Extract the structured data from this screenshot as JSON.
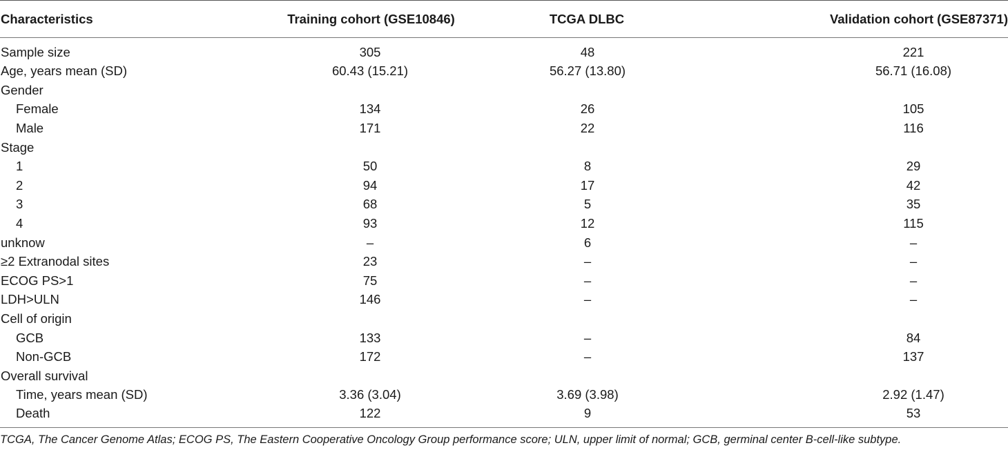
{
  "table": {
    "headers": [
      "Characteristics",
      "Training cohort (GSE10846)",
      "TCGA DLBC",
      "Validation cohort (GSE87371)"
    ],
    "rows": [
      {
        "label": "Sample size",
        "indent": false,
        "values": [
          "305",
          "48",
          "221"
        ]
      },
      {
        "label": "Age, years mean (SD)",
        "indent": false,
        "values": [
          "60.43 (15.21)",
          "56.27 (13.80)",
          "56.71 (16.08)"
        ]
      },
      {
        "label": "Gender",
        "indent": false,
        "values": [
          "",
          "",
          ""
        ]
      },
      {
        "label": "Female",
        "indent": true,
        "values": [
          "134",
          "26",
          "105"
        ]
      },
      {
        "label": "Male",
        "indent": true,
        "values": [
          "171",
          "22",
          "116"
        ]
      },
      {
        "label": "Stage",
        "indent": false,
        "values": [
          "",
          "",
          ""
        ]
      },
      {
        "label": "1",
        "indent": true,
        "values": [
          "50",
          "8",
          "29"
        ]
      },
      {
        "label": "2",
        "indent": true,
        "values": [
          "94",
          "17",
          "42"
        ]
      },
      {
        "label": "3",
        "indent": true,
        "values": [
          "68",
          "5",
          "35"
        ]
      },
      {
        "label": "4",
        "indent": true,
        "values": [
          "93",
          "12",
          "115"
        ]
      },
      {
        "label": "unknow",
        "indent": false,
        "values": [
          "–",
          "6",
          "–"
        ]
      },
      {
        "label": "≥2 Extranodal sites",
        "indent": false,
        "values": [
          "23",
          "–",
          "–"
        ]
      },
      {
        "label": "ECOG PS>1",
        "indent": false,
        "values": [
          "75",
          "–",
          "–"
        ]
      },
      {
        "label": "LDH>ULN",
        "indent": false,
        "values": [
          "146",
          "–",
          "–"
        ]
      },
      {
        "label": "Cell of origin",
        "indent": false,
        "values": [
          "",
          "",
          ""
        ]
      },
      {
        "label": "GCB",
        "indent": true,
        "values": [
          "133",
          "–",
          "84"
        ]
      },
      {
        "label": "Non-GCB",
        "indent": true,
        "values": [
          "172",
          "–",
          "137"
        ]
      },
      {
        "label": "Overall survival",
        "indent": false,
        "values": [
          "",
          "",
          ""
        ]
      },
      {
        "label": "Time, years mean (SD)",
        "indent": true,
        "values": [
          "3.36 (3.04)",
          "3.69 (3.98)",
          "2.92 (1.47)"
        ]
      },
      {
        "label": "Death",
        "indent": true,
        "values": [
          "122",
          "9",
          "53"
        ]
      }
    ]
  },
  "footnote": "TCGA, The Cancer Genome Atlas; ECOG PS, The Eastern Cooperative Oncology Group performance score; ULN, upper limit of normal; GCB, germinal center B-cell-like subtype."
}
